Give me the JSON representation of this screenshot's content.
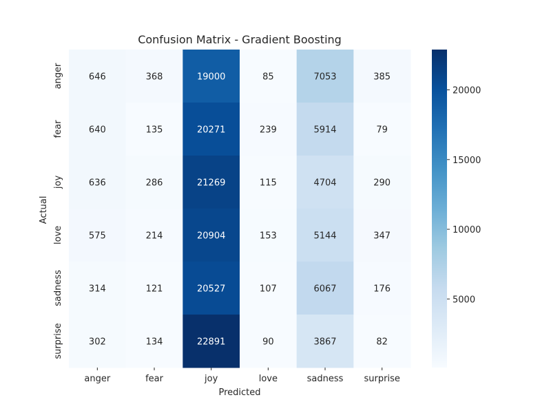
{
  "chart_data": {
    "type": "heatmap",
    "title": "Confusion Matrix - Gradient Boosting",
    "xlabel": "Predicted",
    "ylabel": "Actual",
    "x_categories": [
      "anger",
      "fear",
      "joy",
      "love",
      "sadness",
      "surprise"
    ],
    "y_categories": [
      "anger",
      "fear",
      "joy",
      "love",
      "sadness",
      "surprise"
    ],
    "values": [
      [
        646,
        368,
        19000,
        85,
        7053,
        385
      ],
      [
        640,
        135,
        20271,
        239,
        5914,
        79
      ],
      [
        636,
        286,
        21269,
        115,
        4704,
        290
      ],
      [
        575,
        214,
        20904,
        153,
        5144,
        347
      ],
      [
        314,
        121,
        20527,
        107,
        6067,
        176
      ],
      [
        302,
        134,
        22891,
        90,
        3867,
        82
      ]
    ],
    "colormap": "Blues",
    "colorbar": {
      "min": 79,
      "max": 22891,
      "ticks": [
        5000,
        10000,
        15000,
        20000
      ],
      "tick_labels": [
        "5000",
        "10000",
        "15000",
        "20000"
      ]
    },
    "grid": false
  }
}
